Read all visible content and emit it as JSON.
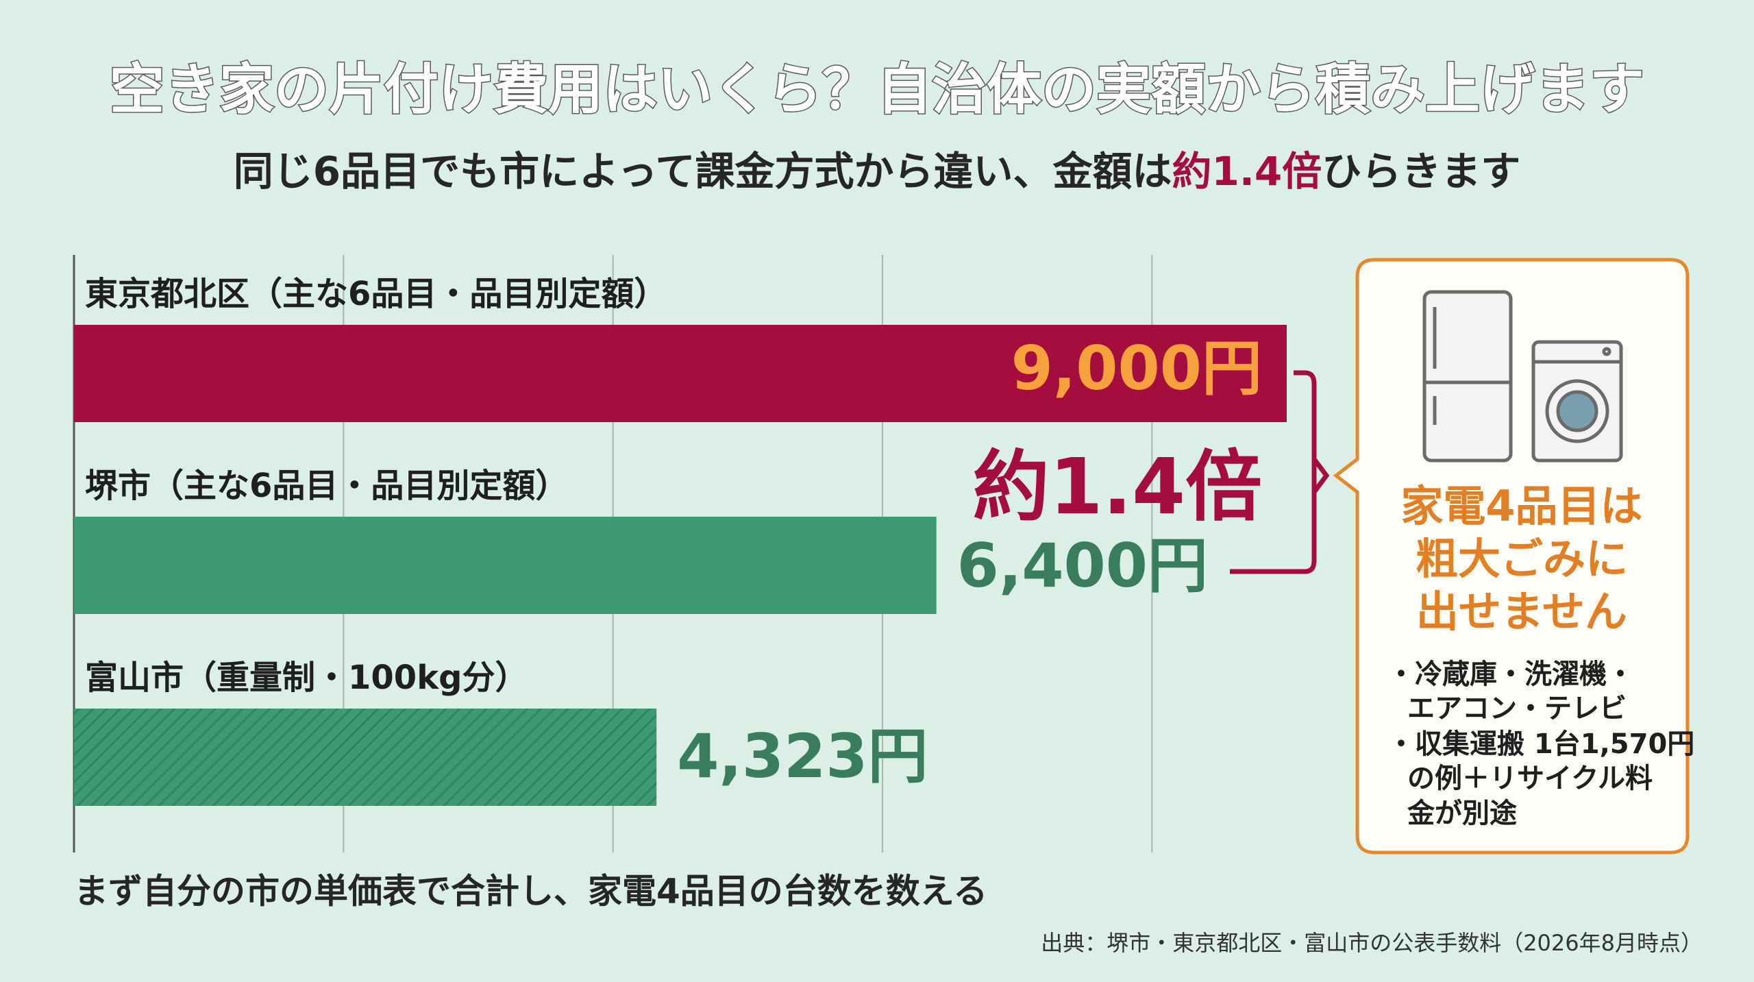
{
  "chart_data": {
    "type": "bar",
    "orientation": "horizontal",
    "title": "空き家の片付け費用はいくら？自治体の実額から積み上げます",
    "subtitle": [
      "同じ6品目でも市によって課金方式から違い、金額は",
      "約1.4倍",
      "ひらきます"
    ],
    "categories": [
      "東京都北区（主な6品目・品目別定額）",
      "堺市（主な6品目・品目別定額）",
      "富山市（重量制・100kg分）"
    ],
    "values": [
      9000,
      6400,
      4323
    ],
    "value_labels": [
      "9,000円",
      "6,400円",
      "4,323円"
    ],
    "colors": [
      "#a50d3e",
      "#3e9a72",
      "#3e9a72"
    ],
    "label_colors": [
      "#f6a13e",
      "#3a7d5c",
      "#3a7d5c"
    ],
    "hatch": [
      false,
      false,
      true
    ],
    "xlim": [
      0,
      9000
    ],
    "xticks": [
      0,
      2000,
      4000,
      6000,
      8000
    ],
    "grid": true,
    "annotation": "約1.4倍",
    "callout": {
      "title": [
        "家電4品目は",
        "粗大ごみに",
        "出せません"
      ],
      "lines": [
        "・冷蔵庫・洗濯機・",
        "エアコン・テレビ",
        "・収集運搬 1台1,570円",
        "の例＋リサイクル料",
        "金が別途"
      ]
    },
    "note": "まず自分の市の単価表で合計し、家電4品目の台数を数える",
    "source": "出典：堺市・東京都北区・富山市の公表手数料（2026年8月時点）"
  }
}
